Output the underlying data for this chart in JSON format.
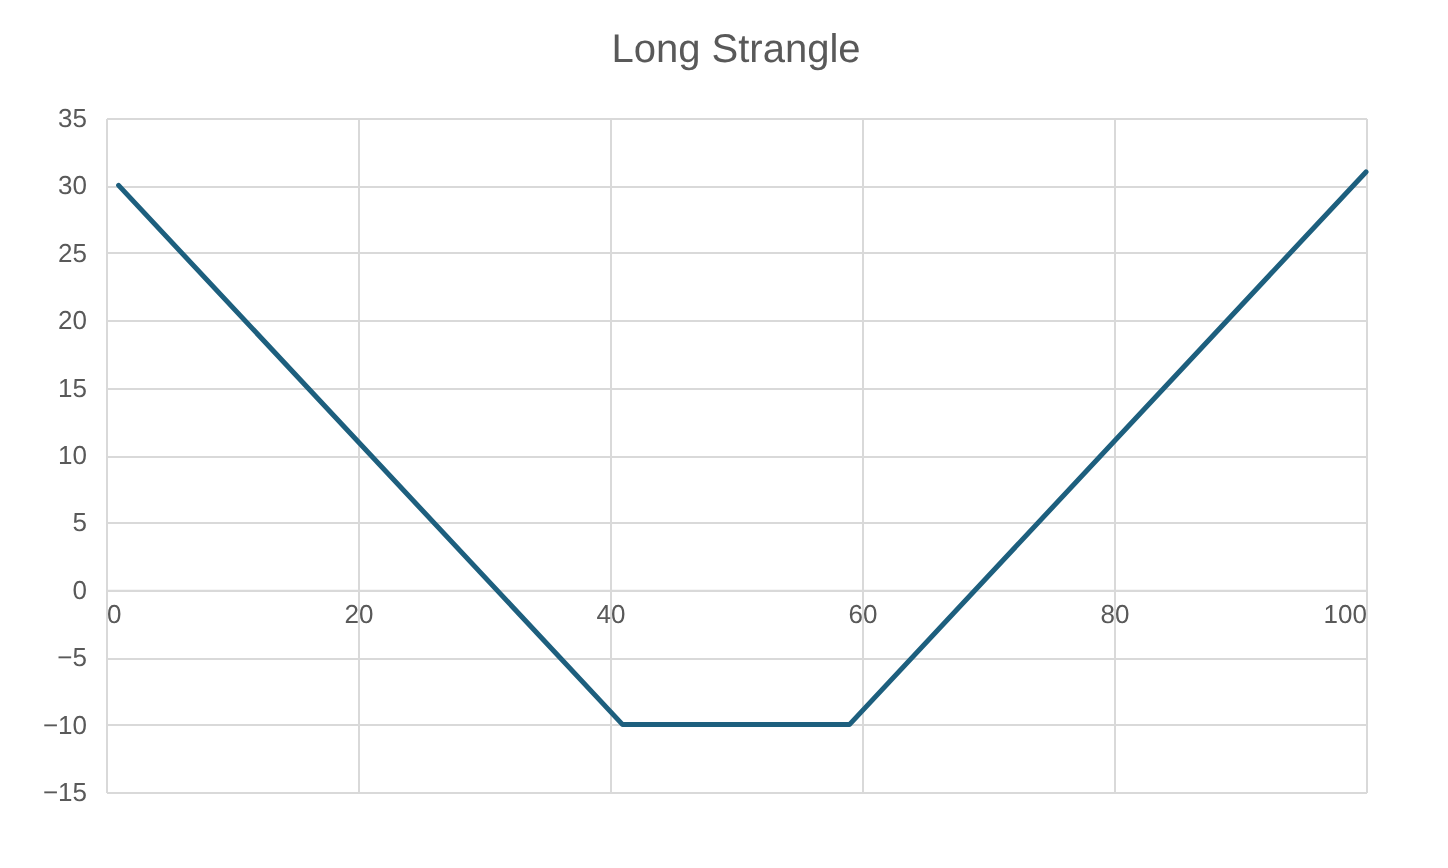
{
  "chart_data": {
    "type": "line",
    "title": "Long Strangle",
    "x": [
      1,
      41,
      59,
      100
    ],
    "series": [
      {
        "color": "#1d5f7e",
        "values": [
          30,
          -10,
          -10,
          31
        ]
      }
    ],
    "xlim": [
      0,
      100
    ],
    "xticks": [
      0,
      20,
      40,
      60,
      80,
      100
    ],
    "ylim": [
      -15,
      35
    ],
    "yticks": [
      -15,
      -10,
      -5,
      0,
      5,
      10,
      15,
      20,
      25,
      30,
      35
    ],
    "grid": true,
    "marker": "none",
    "line_style": "solid"
  }
}
